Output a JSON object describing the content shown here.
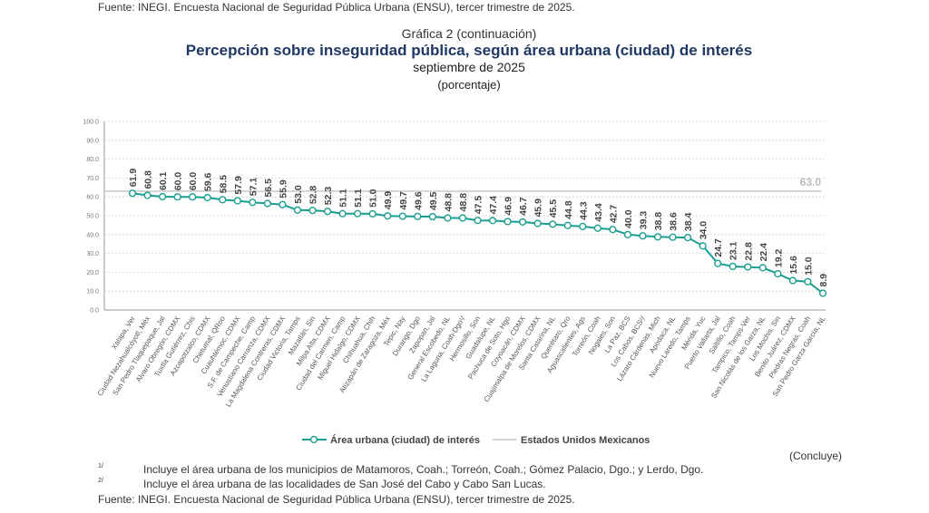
{
  "header": {
    "top_source": "Fuente: INEGI. Encuesta Nacional de Seguridad Pública Urbana (ENSU), tercer trimestre de 2025.",
    "chart_number": "Gráfica 2 (continuación)",
    "title": "Percepción sobre inseguridad pública, según área urbana (ciudad) de interés",
    "period": "septiembre de 2025",
    "unit": "(porcentaje)"
  },
  "chart_data": {
    "type": "line",
    "title": "Percepción sobre inseguridad pública, según área urbana (ciudad) de interés",
    "ylim": [
      0,
      100
    ],
    "yticks": [
      "0.0",
      "10.0",
      "20.0",
      "30.0",
      "40.0",
      "50.0",
      "60.0",
      "70.0",
      "80.0",
      "90.0",
      "100.0"
    ],
    "grid": true,
    "legend_placement": "bottom",
    "categories": [
      "Xalapa, Ver",
      "Ciudad Nezahualcóyotl, Méx",
      "San Pedro Tlaquepaque, Jal",
      "Álvaro Obregón, CDMX",
      "Tuxtla Gutiérrez, Chis",
      "Azcapotzalco, CDMX",
      "Chetumal, QRoo",
      "Cuauhtémoc, CDMX",
      "S.F. de Campeche, Camp",
      "Venustiano Carranza, CDMX",
      "La Magdalena Contreras, CDMX",
      "Ciudad Victoria, Tamps",
      "Mazatlán, Sin",
      "Milpa Alta, CDMX",
      "Ciudad del Carmen, Camp",
      "Miguel Hidalgo, CDMX",
      "Chihuahua, Chih",
      "Atizapán de Zaragoza, Méx",
      "Tepic, Nay",
      "Durango, Dgo",
      "Zapopan, Jal",
      "General Escobedo, NL",
      "La Laguna, Coah-Dgo¹/",
      "Hermosillo, Son",
      "Guadalupe, NL",
      "Pachuca de Soto, Hgo",
      "Coyoacán, CDMX",
      "Cuajimalpa de Morelos, CDMX",
      "Santa Catarina, NL",
      "Querétaro, Qro",
      "Aguascalientes, Ags",
      "Torreón, Coah",
      "Nogales, Son",
      "La Paz, BCS",
      "Los Cabos, BCS²/",
      "Lázaro Cárdenas, Mich",
      "Apodaca, NL",
      "Nuevo Laredo, Tamps",
      "Mérida, Yuc",
      "Puerto Vallarta, Jal",
      "Saltillo, Coah",
      "Tampico, Tamps-Ver",
      "San Nicolás de los Garza, NL",
      "Los Mochis, Sin",
      "Benito Juárez, CDMX",
      "Piedras Negras, Coah",
      "San Pedro Garza García, NL"
    ],
    "series": [
      {
        "name": "Área urbana (ciudad) de interés",
        "color": "#1a9e8f",
        "values": [
          61.9,
          60.8,
          60.1,
          60.0,
          60.0,
          59.6,
          58.5,
          57.9,
          57.1,
          56.5,
          55.9,
          53.0,
          52.8,
          52.3,
          51.1,
          51.1,
          51.0,
          49.9,
          49.7,
          49.6,
          49.5,
          48.8,
          48.8,
          47.5,
          47.4,
          46.9,
          46.7,
          45.9,
          45.5,
          44.8,
          44.3,
          43.4,
          42.7,
          40.0,
          39.3,
          38.8,
          38.6,
          38.4,
          34.0,
          24.7,
          23.1,
          22.8,
          22.4,
          19.2,
          15.6,
          15.0,
          8.9
        ]
      },
      {
        "name": "Estados Unidos Mexicanos",
        "color": "#c8c8c8",
        "reference_value": 63.0,
        "label": "63.0"
      }
    ]
  },
  "footer": {
    "concluye": "(Concluye)",
    "footnotes": [
      {
        "mark": "1/",
        "text": "Incluye el área urbana de los municipios de Matamoros, Coah.; Torreón, Coah.; Gómez Palacio, Dgo.; y Lerdo, Dgo."
      },
      {
        "mark": "2/",
        "text": "Incluye el área urbana de las localidades de San José del Cabo y Cabo San Lucas."
      }
    ],
    "source": "Fuente: INEGI. Encuesta Nacional de Seguridad Pública Urbana (ENSU), tercer trimestre de 2025."
  }
}
